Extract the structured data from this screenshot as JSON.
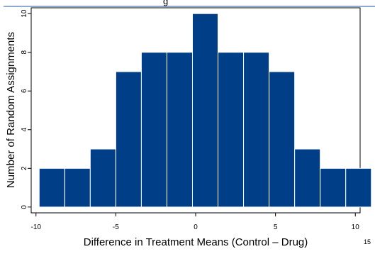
{
  "chart_data": {
    "type": "bar",
    "title": "",
    "title_fragment": "g",
    "xlabel": "Difference in Treatment Means (Control – Drug)",
    "ylabel": "Number of Random Assignments",
    "bin_width": 1.6,
    "bins": [
      {
        "x0": -9.8,
        "x1": -8.2,
        "count": 2
      },
      {
        "x0": -8.2,
        "x1": -6.6,
        "count": 2
      },
      {
        "x0": -6.6,
        "x1": -5.0,
        "count": 3
      },
      {
        "x0": -5.0,
        "x1": -3.4,
        "count": 7
      },
      {
        "x0": -3.4,
        "x1": -1.8,
        "count": 8
      },
      {
        "x0": -1.8,
        "x1": -0.2,
        "count": 8
      },
      {
        "x0": -0.2,
        "x1": 1.4,
        "count": 10
      },
      {
        "x0": 1.4,
        "x1": 3.0,
        "count": 8
      },
      {
        "x0": 3.0,
        "x1": 4.6,
        "count": 8
      },
      {
        "x0": 4.6,
        "x1": 6.2,
        "count": 7
      },
      {
        "x0": 6.2,
        "x1": 7.8,
        "count": 3
      },
      {
        "x0": 7.8,
        "x1": 9.4,
        "count": 2
      },
      {
        "x0": 9.4,
        "x1": 11.0,
        "count": 2
      }
    ],
    "xlim": [
      -10.3,
      10.3
    ],
    "ylim": [
      -0.3,
      10.3
    ],
    "xticks": [
      "-10",
      "-5",
      "0",
      "5",
      "10"
    ],
    "yticks": [
      "0",
      "2",
      "4",
      "6",
      "8",
      "10"
    ],
    "bar_color": "#003f87",
    "edge_color": "#ffffff",
    "grid": false,
    "legend": "none",
    "corner_number": "15"
  }
}
